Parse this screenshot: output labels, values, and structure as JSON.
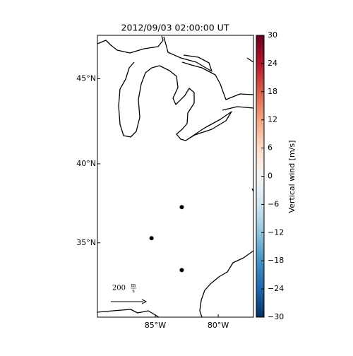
{
  "chart_data": {
    "type": "map",
    "title": "2012/09/03 02:00:00 UT",
    "xlim": [
      -89.6,
      -77.2
    ],
    "ylim": [
      30.0,
      47.4
    ],
    "xticks": [
      {
        "value": -85,
        "label": "85°W"
      },
      {
        "value": -80,
        "label": "80°W"
      }
    ],
    "yticks": [
      {
        "value": 45,
        "label": "45°N"
      },
      {
        "value": 40,
        "label": "40°N"
      },
      {
        "value": 35,
        "label": "35°N"
      }
    ],
    "points": {
      "color": "#000000",
      "lon": [
        -82.9,
        -85.3,
        -82.9
      ],
      "lat": [
        37.3,
        35.3,
        33.2
      ]
    },
    "quiver_key": {
      "label": "200",
      "unit_num": "m",
      "unit_den": "s"
    },
    "colorbar": {
      "label": "Vertical wind [m/s]",
      "lim": [
        -30,
        30
      ],
      "colors": [
        "#053061",
        "#2166ac",
        "#4393c3",
        "#92c5de",
        "#d1e5f0",
        "#f7f7f7",
        "#fddbc7",
        "#f4a582",
        "#d6604d",
        "#b2182b",
        "#67001f"
      ],
      "ticks": [
        {
          "value": -30,
          "label": "−30"
        },
        {
          "value": -24,
          "label": "−24"
        },
        {
          "value": -18,
          "label": "−18"
        },
        {
          "value": -12,
          "label": "−12"
        },
        {
          "value": -6,
          "label": "−6"
        },
        0,
        6,
        12,
        18,
        24,
        30
      ]
    }
  }
}
